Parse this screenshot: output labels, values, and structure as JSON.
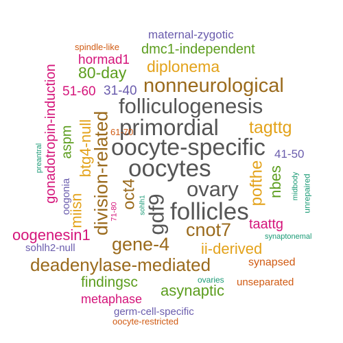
{
  "palette": {
    "gray": "#555555",
    "brown": "#9a6a1c",
    "gold": "#e3a21a",
    "green": "#5c9d1e",
    "magenta": "#d4147a",
    "purple": "#6a5cad",
    "orange": "#d05a12",
    "teal": "#1a9a75"
  },
  "words": [
    {
      "text": "maternal-zygotic",
      "color": "purple"
    },
    {
      "text": "spindle-like",
      "color": "orange"
    },
    {
      "text": "dmc1-independent",
      "color": "green"
    },
    {
      "text": "hormad1",
      "color": "magenta"
    },
    {
      "text": "diplonema",
      "color": "gold"
    },
    {
      "text": "80-day",
      "color": "green"
    },
    {
      "text": "nonneurological",
      "color": "brown"
    },
    {
      "text": "51-60",
      "color": "magenta"
    },
    {
      "text": "31-40",
      "color": "purple"
    },
    {
      "text": "folliculogenesis",
      "color": "gray"
    },
    {
      "text": "primordial",
      "color": "gray"
    },
    {
      "text": "tagttg",
      "color": "gold"
    },
    {
      "text": "61-70",
      "color": "orange"
    },
    {
      "text": "oocyte-specific",
      "color": "gray"
    },
    {
      "text": "oocytes",
      "color": "gray"
    },
    {
      "text": "41-50",
      "color": "purple"
    },
    {
      "text": "ovary",
      "color": "gray"
    },
    {
      "text": "follicles",
      "color": "gray"
    },
    {
      "text": "cnot7",
      "color": "brown"
    },
    {
      "text": "taattg",
      "color": "magenta"
    },
    {
      "text": "oogenesin1",
      "color": "magenta"
    },
    {
      "text": "gene-4",
      "color": "brown"
    },
    {
      "text": "ii-derived",
      "color": "gold"
    },
    {
      "text": "synaptonemal",
      "color": "teal"
    },
    {
      "text": "sohlh2-null",
      "color": "purple"
    },
    {
      "text": "deadenylase-mediated",
      "color": "brown"
    },
    {
      "text": "synapsed",
      "color": "orange"
    },
    {
      "text": "findingsc",
      "color": "green"
    },
    {
      "text": "ovaries",
      "color": "teal"
    },
    {
      "text": "unseparated",
      "color": "orange"
    },
    {
      "text": "asynaptic",
      "color": "green"
    },
    {
      "text": "metaphase",
      "color": "magenta"
    },
    {
      "text": "germ-cell-specific",
      "color": "purple"
    },
    {
      "text": "oocyte-restricted",
      "color": "orange"
    },
    {
      "text": "gonadotropin-induction",
      "color": "magenta"
    },
    {
      "text": "aspm",
      "color": "green"
    },
    {
      "text": "preantral",
      "color": "teal"
    },
    {
      "text": "oogonia",
      "color": "purple"
    },
    {
      "text": "miisn",
      "color": "gold"
    },
    {
      "text": "btg4-null",
      "color": "gold"
    },
    {
      "text": "division-related",
      "color": "brown"
    },
    {
      "text": "71-80",
      "color": "magenta"
    },
    {
      "text": "oct4",
      "color": "brown"
    },
    {
      "text": "gdf9",
      "color": "gray"
    },
    {
      "text": "sohlh1",
      "color": "teal"
    },
    {
      "text": "pofthe",
      "color": "gold"
    },
    {
      "text": "nbes",
      "color": "green"
    },
    {
      "text": "midbody",
      "color": "teal"
    },
    {
      "text": "unrepaired",
      "color": "teal"
    }
  ]
}
